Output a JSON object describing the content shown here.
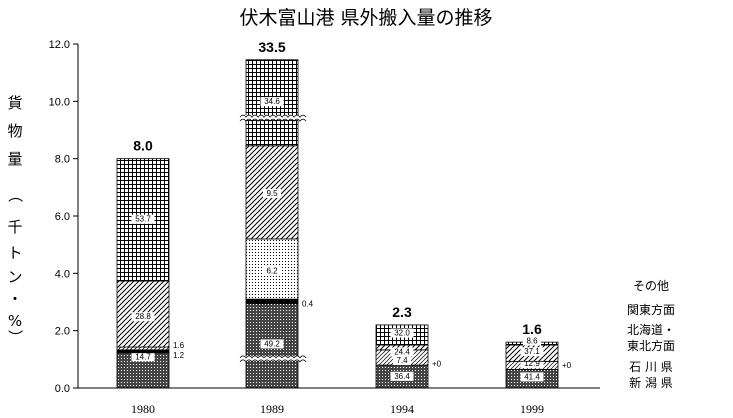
{
  "chart_data": {
    "type": "bar",
    "title": "伏木富山港 県外搬入量の推移",
    "ylabel": "貨物量（千トン・%）",
    "ylim": [
      0,
      12
    ],
    "yticks": [
      "0.0",
      "2.0",
      "4.0",
      "6.0",
      "8.0",
      "10.0",
      "12.0"
    ],
    "categories": [
      "1980",
      "1989",
      "1994",
      "1999"
    ],
    "totals": [
      "8.0",
      "33.5",
      "2.3",
      "1.6"
    ],
    "stack_order": [
      "新潟県",
      "石川県",
      "北海道・東北方面",
      "関東方面",
      "その他"
    ],
    "series": [
      {
        "name": "新潟県",
        "pattern": "crosshatch-dense",
        "values": [
          1.2,
          3.1,
          0.8,
          0.65
        ]
      },
      {
        "name": "石川県",
        "pattern": "solid-black",
        "values": [
          0.09,
          0.1,
          0.0,
          0.0
        ]
      },
      {
        "name": "北海道・東北方面",
        "pattern": "diagonal-light",
        "values": [
          0.13,
          0.0,
          0.1,
          0.2
        ]
      },
      {
        "name": "関東方面",
        "pattern": "diagonal-dense",
        "values": [
          2.3,
          0.0,
          0.55,
          0.6
        ]
      },
      {
        "name": "その他",
        "pattern": "grid",
        "values": [
          4.3,
          0.0,
          0.75,
          0.15
        ]
      }
    ],
    "bars": [
      {
        "category": "1980",
        "segments": [
          {
            "pattern": "crosshatch-dense",
            "label": "14.7"
          },
          {
            "pattern": "solid-black",
            "label": ""
          },
          {
            "pattern": "diagonal-light",
            "label": ""
          },
          {
            "pattern": "diagonal-dense",
            "label": "28.8"
          },
          {
            "pattern": "grid",
            "label": "53.7"
          }
        ],
        "side_labels": [
          "1.6",
          "1.2"
        ]
      },
      {
        "category": "1989",
        "segments": [
          {
            "pattern": "crosshatch-dense",
            "label": "49.2"
          },
          {
            "pattern": "solid-black",
            "label": ""
          },
          {
            "pattern": "dots",
            "label": "6.2"
          },
          {
            "pattern": "diagonal-dense",
            "label": "9.5"
          },
          {
            "pattern": "grid",
            "label": "34.6"
          }
        ],
        "side_labels": [
          "0.4"
        ]
      },
      {
        "category": "1994",
        "segments": [
          {
            "pattern": "crosshatch-dense",
            "label": "36.4"
          },
          {
            "pattern": "diagonal-light",
            "label": "7.4"
          },
          {
            "pattern": "diagonal-dense",
            "label": "24.4"
          },
          {
            "pattern": "grid",
            "label": "32.0"
          }
        ],
        "side_labels": [
          "+0"
        ]
      },
      {
        "category": "1999",
        "segments": [
          {
            "pattern": "crosshatch-dense",
            "label": "41.4"
          },
          {
            "pattern": "diagonal-light",
            "label": "12.9"
          },
          {
            "pattern": "diagonal-dense",
            "label": "37.1"
          },
          {
            "pattern": "grid",
            "label": "8.6"
          }
        ],
        "side_labels": [
          "+0"
        ]
      }
    ],
    "legend": [
      "その他",
      "関東方面",
      "北海道・",
      "東北方面",
      "石 川 県",
      "新 潟 県"
    ],
    "grid": false,
    "legend_position": "right"
  }
}
